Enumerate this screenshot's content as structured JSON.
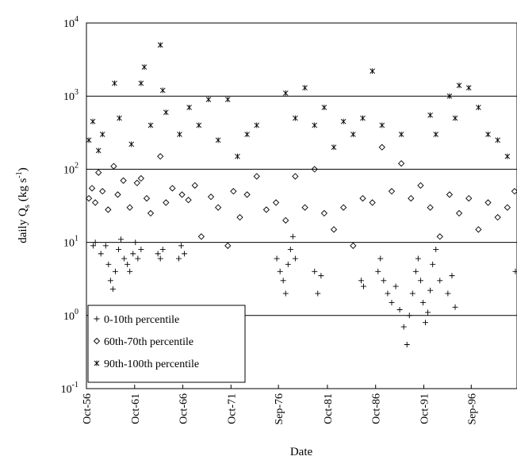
{
  "chart_data": {
    "type": "scatter",
    "title": "",
    "xlabel": "Date",
    "ylabel_main": "daily Q",
    "ylabel_sub": "s",
    "ylabel_units_open": " (kg s",
    "ylabel_units_exp": "-1",
    "ylabel_units_close": ")",
    "y_scale": "log",
    "ylim": [
      0.1,
      10000
    ],
    "xlim": [
      "1956-10-01",
      "2001-06-01"
    ],
    "y_ticks": [
      {
        "value": 0.1,
        "base": "10",
        "exp": "-1"
      },
      {
        "value": 1,
        "base": "10",
        "exp": "0"
      },
      {
        "value": 10,
        "base": "10",
        "exp": "1"
      },
      {
        "value": 100,
        "base": "10",
        "exp": "2"
      },
      {
        "value": 1000,
        "base": "10",
        "exp": "3"
      },
      {
        "value": 10000,
        "base": "10",
        "exp": "4"
      }
    ],
    "x_ticks": [
      {
        "date": "1956-10-01",
        "label": "Oct-56"
      },
      {
        "date": "1961-10-01",
        "label": "Oct-61"
      },
      {
        "date": "1966-10-01",
        "label": "Oct-66"
      },
      {
        "date": "1971-10-01",
        "label": "Oct-71"
      },
      {
        "date": "1976-09-01",
        "label": "Sep-76"
      },
      {
        "date": "1981-10-01",
        "label": "Oct-81"
      },
      {
        "date": "1986-10-01",
        "label": "Oct-86"
      },
      {
        "date": "1991-10-01",
        "label": "Oct-91"
      },
      {
        "date": "1996-09-01",
        "label": "Sep-96"
      }
    ],
    "grid": "horizontal at decades",
    "legend_position": "bottom-left",
    "series": [
      {
        "name": "0-10th percentile",
        "marker": "plus",
        "points": [
          [
            "1957-06-15",
            9
          ],
          [
            "1957-09-01",
            10
          ],
          [
            "1958-04-01",
            7
          ],
          [
            "1958-10-01",
            9
          ],
          [
            "1959-01-15",
            5
          ],
          [
            "1959-04-01",
            3
          ],
          [
            "1959-07-01",
            2.3
          ],
          [
            "1959-10-01",
            4
          ],
          [
            "1960-02-01",
            8
          ],
          [
            "1960-05-01",
            11
          ],
          [
            "1960-09-01",
            6
          ],
          [
            "1961-01-01",
            5
          ],
          [
            "1961-04-01",
            4
          ],
          [
            "1961-08-01",
            7
          ],
          [
            "1961-11-01",
            10
          ],
          [
            "1962-02-01",
            6
          ],
          [
            "1962-06-01",
            8
          ],
          [
            "1964-03-01",
            7
          ],
          [
            "1964-06-01",
            6
          ],
          [
            "1964-09-01",
            8
          ],
          [
            "1966-05-01",
            6
          ],
          [
            "1966-08-01",
            9
          ],
          [
            "1966-12-01",
            7
          ],
          [
            "1976-07-01",
            6
          ],
          [
            "1976-11-01",
            4
          ],
          [
            "1977-03-01",
            3
          ],
          [
            "1977-06-01",
            2
          ],
          [
            "1977-09-01",
            5
          ],
          [
            "1977-12-01",
            8
          ],
          [
            "1978-03-01",
            12
          ],
          [
            "1978-06-01",
            6
          ],
          [
            "1980-06-01",
            4
          ],
          [
            "1980-10-01",
            2
          ],
          [
            "1981-02-01",
            3.5
          ],
          [
            "1985-04-01",
            3
          ],
          [
            "1985-07-01",
            2.5
          ],
          [
            "1987-01-01",
            4
          ],
          [
            "1987-04-01",
            6
          ],
          [
            "1987-08-01",
            3
          ],
          [
            "1988-01-01",
            2
          ],
          [
            "1988-06-01",
            1.5
          ],
          [
            "1988-11-01",
            2.5
          ],
          [
            "1989-04-01",
            1.2
          ],
          [
            "1989-09-01",
            0.7
          ],
          [
            "1990-01-01",
            0.4
          ],
          [
            "1990-04-01",
            1
          ],
          [
            "1990-08-01",
            2
          ],
          [
            "1990-12-01",
            4
          ],
          [
            "1991-03-01",
            6
          ],
          [
            "1991-06-01",
            3
          ],
          [
            "1991-09-01",
            1.5
          ],
          [
            "1991-12-01",
            0.8
          ],
          [
            "1992-03-01",
            1.1
          ],
          [
            "1992-06-01",
            2.2
          ],
          [
            "1992-09-01",
            5
          ],
          [
            "1993-01-01",
            8
          ],
          [
            "1993-06-01",
            3
          ],
          [
            "1994-04-01",
            2
          ],
          [
            "1994-09-01",
            3.5
          ],
          [
            "1995-01-01",
            1.3
          ],
          [
            "2001-04-01",
            4
          ]
        ]
      },
      {
        "name": "60th-70th percentile",
        "marker": "diamond",
        "points": [
          [
            "1957-01-01",
            40
          ],
          [
            "1957-05-01",
            55
          ],
          [
            "1957-09-01",
            35
          ],
          [
            "1958-01-01",
            90
          ],
          [
            "1958-06-01",
            50
          ],
          [
            "1959-01-01",
            28
          ],
          [
            "1959-08-01",
            110
          ],
          [
            "1960-01-01",
            45
          ],
          [
            "1960-08-01",
            70
          ],
          [
            "1961-04-01",
            30
          ],
          [
            "1962-01-01",
            65
          ],
          [
            "1962-06-01",
            75
          ],
          [
            "1963-01-01",
            40
          ],
          [
            "1963-06-01",
            25
          ],
          [
            "1964-06-01",
            150
          ],
          [
            "1965-01-01",
            35
          ],
          [
            "1965-09-01",
            55
          ],
          [
            "1966-09-01",
            45
          ],
          [
            "1967-05-01",
            38
          ],
          [
            "1968-01-01",
            60
          ],
          [
            "1968-09-01",
            12
          ],
          [
            "1969-09-01",
            42
          ],
          [
            "1970-06-01",
            30
          ],
          [
            "1971-06-01",
            9
          ],
          [
            "1972-01-01",
            50
          ],
          [
            "1972-09-01",
            22
          ],
          [
            "1973-06-01",
            45
          ],
          [
            "1974-06-01",
            80
          ],
          [
            "1975-06-01",
            28
          ],
          [
            "1976-06-01",
            35
          ],
          [
            "1977-06-01",
            20
          ],
          [
            "1978-06-01",
            80
          ],
          [
            "1979-06-01",
            30
          ],
          [
            "1980-06-01",
            100
          ],
          [
            "1981-06-01",
            25
          ],
          [
            "1982-06-01",
            15
          ],
          [
            "1983-06-01",
            30
          ],
          [
            "1984-06-01",
            9
          ],
          [
            "1985-06-01",
            40
          ],
          [
            "1986-06-01",
            35
          ],
          [
            "1987-06-01",
            200
          ],
          [
            "1988-06-01",
            50
          ],
          [
            "1989-06-01",
            120
          ],
          [
            "1990-06-01",
            40
          ],
          [
            "1991-06-01",
            60
          ],
          [
            "1992-06-01",
            30
          ],
          [
            "1993-06-01",
            12
          ],
          [
            "1994-06-01",
            45
          ],
          [
            "1995-06-01",
            25
          ],
          [
            "1996-06-01",
            40
          ],
          [
            "1997-06-01",
            15
          ],
          [
            "1998-06-01",
            35
          ],
          [
            "1999-06-01",
            22
          ],
          [
            "2000-06-01",
            30
          ],
          [
            "2001-03-01",
            50
          ]
        ]
      },
      {
        "name": "90th-100th percentile",
        "marker": "asterisk",
        "points": [
          [
            "1957-01-01",
            250
          ],
          [
            "1957-06-01",
            450
          ],
          [
            "1958-01-01",
            180
          ],
          [
            "1958-06-01",
            300
          ],
          [
            "1959-09-01",
            1500
          ],
          [
            "1960-03-01",
            500
          ],
          [
            "1961-06-01",
            220
          ],
          [
            "1962-06-01",
            1500
          ],
          [
            "1962-10-01",
            2500
          ],
          [
            "1963-06-01",
            400
          ],
          [
            "1964-06-01",
            5000
          ],
          [
            "1964-09-01",
            1200
          ],
          [
            "1965-01-01",
            600
          ],
          [
            "1966-06-01",
            300
          ],
          [
            "1967-06-01",
            700
          ],
          [
            "1968-06-01",
            400
          ],
          [
            "1969-06-01",
            900
          ],
          [
            "1970-06-01",
            250
          ],
          [
            "1971-06-01",
            900
          ],
          [
            "1972-06-01",
            150
          ],
          [
            "1973-06-01",
            300
          ],
          [
            "1974-06-01",
            400
          ],
          [
            "1977-06-01",
            1100
          ],
          [
            "1978-06-01",
            500
          ],
          [
            "1979-06-01",
            1300
          ],
          [
            "1980-06-01",
            400
          ],
          [
            "1981-06-01",
            700
          ],
          [
            "1982-06-01",
            200
          ],
          [
            "1983-06-01",
            450
          ],
          [
            "1984-06-01",
            300
          ],
          [
            "1985-06-01",
            500
          ],
          [
            "1986-06-01",
            2200
          ],
          [
            "1987-06-01",
            400
          ],
          [
            "1989-06-01",
            300
          ],
          [
            "1992-06-01",
            550
          ],
          [
            "1993-01-01",
            300
          ],
          [
            "1994-06-01",
            1000
          ],
          [
            "1995-01-01",
            500
          ],
          [
            "1995-06-01",
            1400
          ],
          [
            "1996-06-01",
            1300
          ],
          [
            "1997-06-01",
            700
          ],
          [
            "1998-06-01",
            300
          ],
          [
            "1999-06-01",
            250
          ],
          [
            "2000-06-01",
            150
          ]
        ]
      }
    ]
  }
}
